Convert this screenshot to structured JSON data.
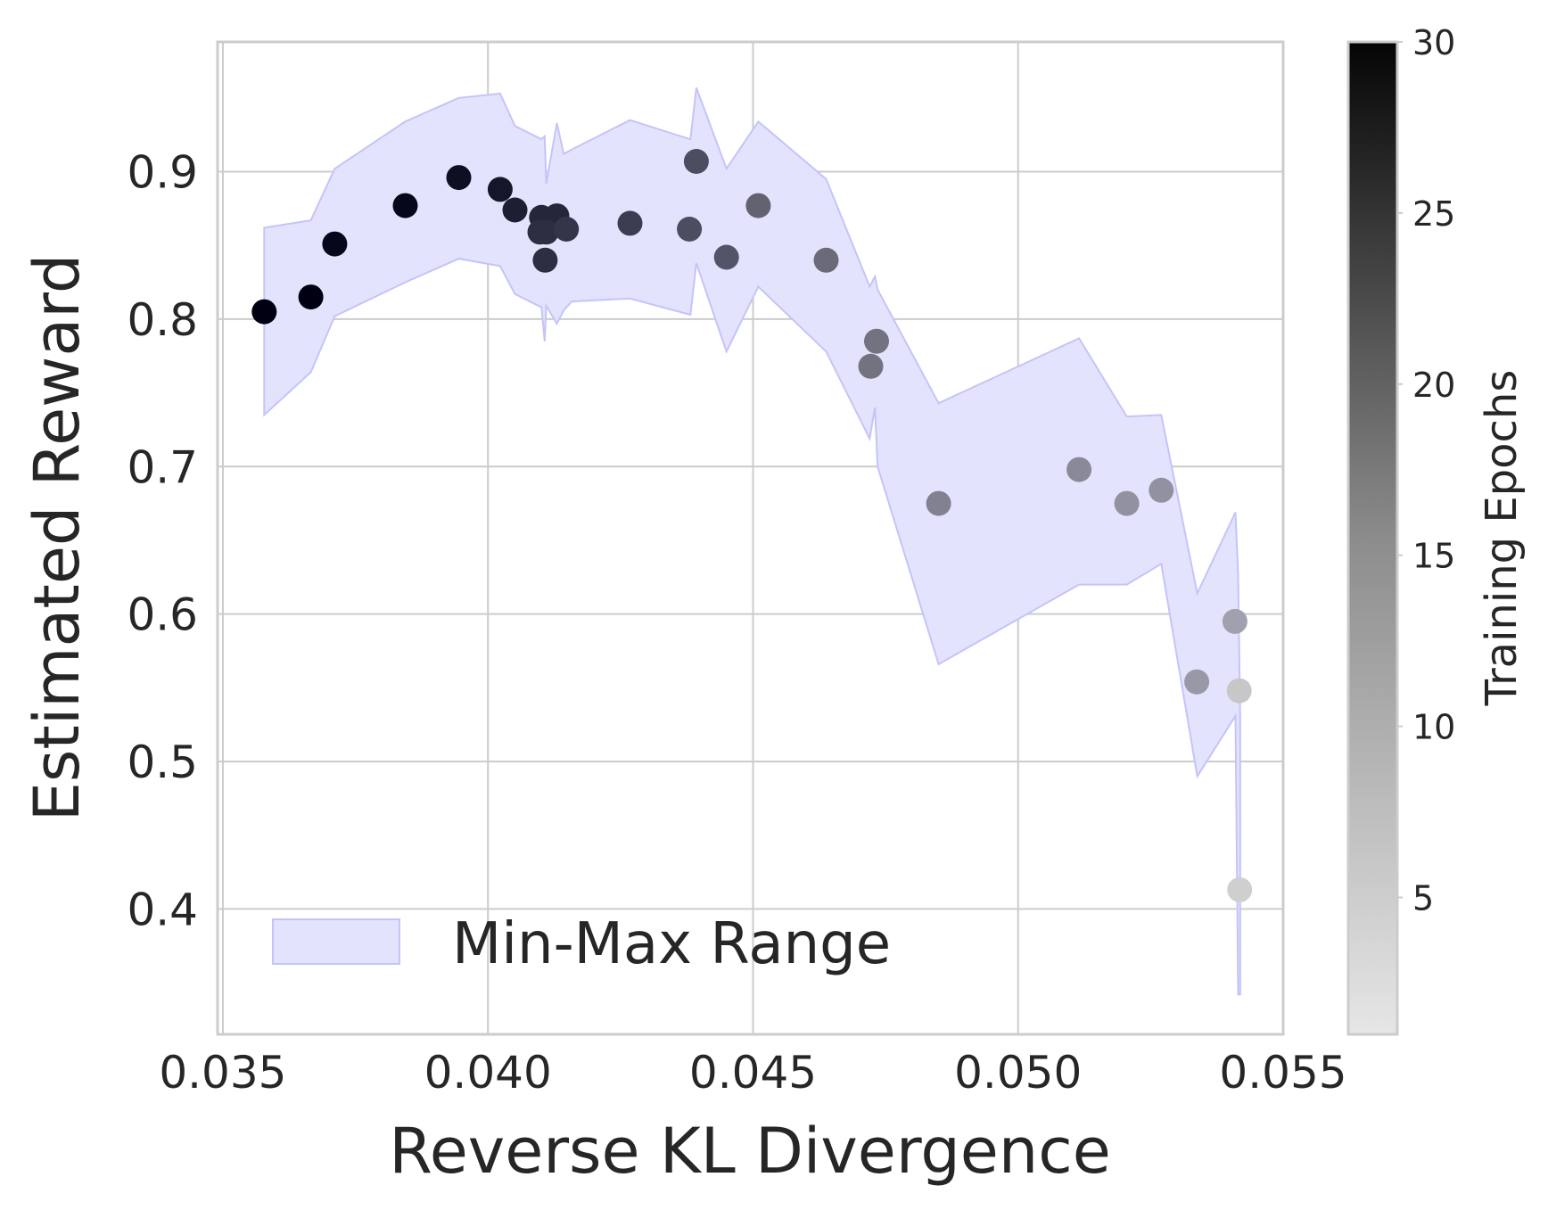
{
  "chart_data": {
    "type": "scatter",
    "xlabel": "Reverse KL Divergence",
    "ylabel": "Estimated Reward",
    "xlim": [
      0.0349,
      0.055
    ],
    "ylim": [
      0.315,
      0.988
    ],
    "x_ticks": [
      0.035,
      0.04,
      0.045,
      0.05,
      0.055
    ],
    "x_tick_labels": [
      "0.035",
      "0.040",
      "0.045",
      "0.050",
      "0.055"
    ],
    "y_ticks": [
      0.4,
      0.5,
      0.6,
      0.7,
      0.8,
      0.9
    ],
    "y_tick_labels": [
      "0.4",
      "0.5",
      "0.6",
      "0.7",
      "0.8",
      "0.9"
    ],
    "grid": true,
    "legend": {
      "position": "lower-left",
      "entries": [
        "Min-Max Range"
      ]
    },
    "colorbar": {
      "label": "Training Epochs",
      "range": [
        1,
        30
      ],
      "ticks": [
        5,
        10,
        15,
        20,
        25,
        30
      ],
      "tick_labels": [
        "5",
        "10",
        "15",
        "20",
        "25",
        "30"
      ],
      "colormap": "greys"
    },
    "band": {
      "name": "Min-Max Range",
      "color": "#e3e3fd",
      "edge_color": "#c4c4fa",
      "x": [
        0.03578,
        0.03666,
        0.03711,
        0.03844,
        0.03945,
        0.04023,
        0.04051,
        0.04101,
        0.04107,
        0.0411,
        0.0413,
        0.04143,
        0.04158,
        0.04268,
        0.04382,
        0.04393,
        0.0445,
        0.0451,
        0.04638,
        0.0472,
        0.0473,
        0.04735,
        0.0485,
        0.05115,
        0.05205,
        0.0527,
        0.05338,
        0.0541,
        0.05415,
        0.05419
      ],
      "upper": [
        0.862,
        0.867,
        0.902,
        0.934,
        0.95,
        0.953,
        0.931,
        0.922,
        0.924,
        0.892,
        0.933,
        0.912,
        0.915,
        0.935,
        0.922,
        0.957,
        0.902,
        0.934,
        0.895,
        0.822,
        0.829,
        0.82,
        0.743,
        0.787,
        0.734,
        0.735,
        0.614,
        0.669,
        0.627,
        0.53
      ],
      "lower": [
        0.735,
        0.764,
        0.802,
        0.825,
        0.841,
        0.836,
        0.817,
        0.808,
        0.785,
        0.809,
        0.797,
        0.806,
        0.812,
        0.814,
        0.803,
        0.838,
        0.778,
        0.822,
        0.778,
        0.719,
        0.74,
        0.7,
        0.566,
        0.62,
        0.62,
        0.634,
        0.49,
        0.531,
        0.342,
        0.342
      ]
    },
    "points": [
      {
        "x": 0.03578,
        "y": 0.805,
        "epoch": 30
      },
      {
        "x": 0.03666,
        "y": 0.815,
        "epoch": 30
      },
      {
        "x": 0.03711,
        "y": 0.851,
        "epoch": 29
      },
      {
        "x": 0.03844,
        "y": 0.877,
        "epoch": 29
      },
      {
        "x": 0.03945,
        "y": 0.896,
        "epoch": 28
      },
      {
        "x": 0.04023,
        "y": 0.888,
        "epoch": 27
      },
      {
        "x": 0.04051,
        "y": 0.874,
        "epoch": 26
      },
      {
        "x": 0.04101,
        "y": 0.869,
        "epoch": 25
      },
      {
        "x": 0.0413,
        "y": 0.87,
        "epoch": 25
      },
      {
        "x": 0.04098,
        "y": 0.859,
        "epoch": 24
      },
      {
        "x": 0.0411,
        "y": 0.859,
        "epoch": 24
      },
      {
        "x": 0.04148,
        "y": 0.861,
        "epoch": 23
      },
      {
        "x": 0.04108,
        "y": 0.84,
        "epoch": 24
      },
      {
        "x": 0.04268,
        "y": 0.865,
        "epoch": 22
      },
      {
        "x": 0.04393,
        "y": 0.907,
        "epoch": 20
      },
      {
        "x": 0.0438,
        "y": 0.861,
        "epoch": 20
      },
      {
        "x": 0.0445,
        "y": 0.842,
        "epoch": 19
      },
      {
        "x": 0.0451,
        "y": 0.877,
        "epoch": 18
      },
      {
        "x": 0.04638,
        "y": 0.84,
        "epoch": 17
      },
      {
        "x": 0.04733,
        "y": 0.785,
        "epoch": 16
      },
      {
        "x": 0.04722,
        "y": 0.768,
        "epoch": 16
      },
      {
        "x": 0.0485,
        "y": 0.675,
        "epoch": 14
      },
      {
        "x": 0.05115,
        "y": 0.698,
        "epoch": 13
      },
      {
        "x": 0.05205,
        "y": 0.675,
        "epoch": 12
      },
      {
        "x": 0.0527,
        "y": 0.684,
        "epoch": 12
      },
      {
        "x": 0.05337,
        "y": 0.554,
        "epoch": 11
      },
      {
        "x": 0.05409,
        "y": 0.595,
        "epoch": 10
      },
      {
        "x": 0.05417,
        "y": 0.548,
        "epoch": 5
      },
      {
        "x": 0.05418,
        "y": 0.413,
        "epoch": 4
      }
    ]
  }
}
